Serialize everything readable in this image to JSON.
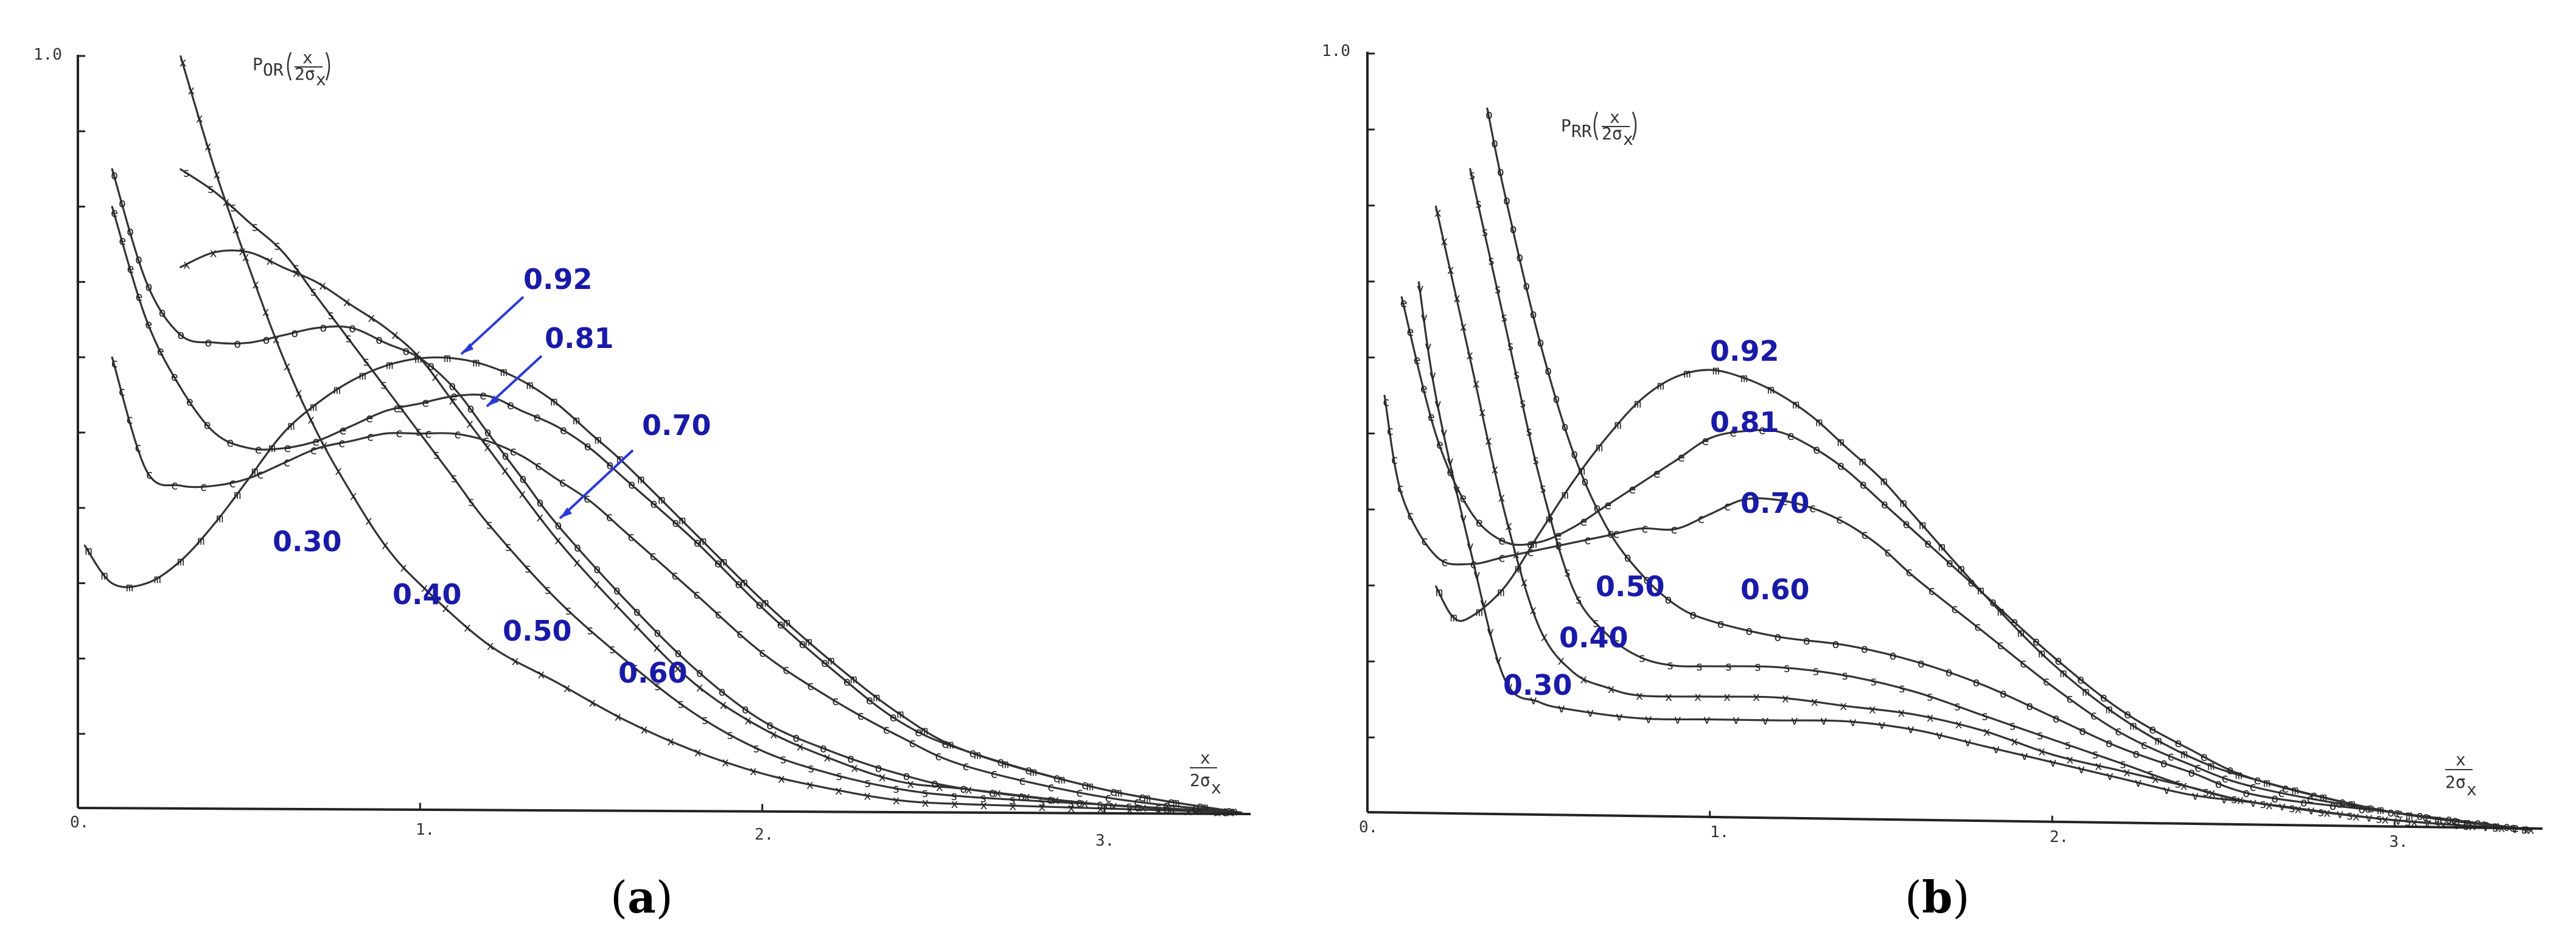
{
  "chart_data": [
    {
      "type": "line",
      "panel_label": "a",
      "ylabel_main": "P",
      "ylabel_sub": "OR",
      "ylabel_frac_num": "x",
      "ylabel_frac_den": "2σ",
      "ylabel_frac_den_sub": "x",
      "xlabel_num": "x",
      "xlabel_den": "2σ",
      "xlabel_den_sub": "x",
      "x_tick_labels": [
        "0.",
        "1.",
        "2.",
        "3."
      ],
      "y_tick_labels": [
        "1.0"
      ],
      "xlim": [
        0,
        3.45
      ],
      "ylim": [
        0,
        1.0
      ],
      "series": [
        {
          "name": "0.30",
          "marker": "x",
          "x": [
            0.3,
            0.4,
            0.5,
            0.6,
            0.7,
            0.8,
            0.9,
            1.0,
            1.2,
            1.4,
            1.6,
            1.8,
            2.0,
            2.2,
            2.4,
            2.6,
            3.0,
            3.4
          ],
          "y": [
            1.0,
            0.85,
            0.72,
            0.6,
            0.5,
            0.42,
            0.35,
            0.3,
            0.22,
            0.17,
            0.12,
            0.08,
            0.05,
            0.03,
            0.015,
            0.01,
            0.005,
            0.0
          ]
        },
        {
          "name": "0.40",
          "marker": "s",
          "x": [
            0.3,
            0.4,
            0.5,
            0.6,
            0.7,
            0.8,
            0.9,
            1.0,
            1.1,
            1.2,
            1.4,
            1.6,
            1.8,
            2.0,
            2.2,
            2.4,
            2.6,
            3.0,
            3.4
          ],
          "y": [
            0.85,
            0.82,
            0.78,
            0.74,
            0.68,
            0.62,
            0.56,
            0.5,
            0.44,
            0.38,
            0.28,
            0.2,
            0.13,
            0.08,
            0.05,
            0.03,
            0.02,
            0.01,
            0.0
          ]
        },
        {
          "name": "0.50",
          "marker": "x",
          "x": [
            0.3,
            0.4,
            0.5,
            0.6,
            0.7,
            0.8,
            0.9,
            1.0,
            1.1,
            1.2,
            1.4,
            1.6,
            1.8,
            2.0,
            2.2,
            2.4,
            2.6,
            3.0,
            3.4
          ],
          "y": [
            0.72,
            0.74,
            0.74,
            0.72,
            0.7,
            0.67,
            0.64,
            0.6,
            0.54,
            0.48,
            0.36,
            0.26,
            0.17,
            0.11,
            0.07,
            0.04,
            0.03,
            0.01,
            0.0
          ]
        },
        {
          "name": "0.60",
          "marker": "o",
          "x": [
            0.1,
            0.2,
            0.3,
            0.4,
            0.5,
            0.6,
            0.7,
            0.8,
            0.9,
            1.0,
            1.1,
            1.2,
            1.3,
            1.4,
            1.6,
            1.8,
            2.0,
            2.2,
            2.4,
            2.6,
            3.0,
            3.4
          ],
          "y": [
            0.85,
            0.7,
            0.63,
            0.62,
            0.62,
            0.63,
            0.64,
            0.64,
            0.62,
            0.6,
            0.56,
            0.5,
            0.44,
            0.38,
            0.28,
            0.19,
            0.12,
            0.08,
            0.05,
            0.03,
            0.01,
            0.0
          ]
        },
        {
          "name": "0.70",
          "marker": "c",
          "x": [
            0.1,
            0.2,
            0.3,
            0.4,
            0.5,
            0.6,
            0.7,
            0.8,
            0.9,
            1.0,
            1.1,
            1.2,
            1.3,
            1.4,
            1.5,
            1.6,
            1.8,
            2.0,
            2.2,
            2.4,
            2.6,
            3.0,
            3.4
          ],
          "y": [
            0.6,
            0.45,
            0.43,
            0.43,
            0.44,
            0.46,
            0.48,
            0.49,
            0.5,
            0.5,
            0.5,
            0.49,
            0.47,
            0.44,
            0.41,
            0.37,
            0.29,
            0.21,
            0.15,
            0.1,
            0.06,
            0.02,
            0.0
          ]
        },
        {
          "name": "0.81",
          "marker": "e",
          "x": [
            0.1,
            0.2,
            0.3,
            0.4,
            0.5,
            0.6,
            0.7,
            0.8,
            0.9,
            1.0,
            1.1,
            1.2,
            1.3,
            1.4,
            1.5,
            1.6,
            1.8,
            2.0,
            2.2,
            2.4,
            2.6,
            3.0,
            3.4
          ],
          "y": [
            0.8,
            0.65,
            0.56,
            0.5,
            0.48,
            0.48,
            0.49,
            0.51,
            0.53,
            0.54,
            0.55,
            0.55,
            0.53,
            0.51,
            0.48,
            0.44,
            0.36,
            0.27,
            0.19,
            0.12,
            0.08,
            0.03,
            0.0
          ]
        },
        {
          "name": "0.92",
          "marker": "m",
          "x": [
            0.02,
            0.1,
            0.2,
            0.3,
            0.4,
            0.5,
            0.6,
            0.7,
            0.8,
            0.9,
            1.0,
            1.1,
            1.2,
            1.3,
            1.4,
            1.5,
            1.6,
            1.8,
            2.0,
            2.2,
            2.4,
            2.6,
            3.0,
            3.4
          ],
          "y": [
            0.35,
            0.3,
            0.3,
            0.33,
            0.38,
            0.44,
            0.5,
            0.54,
            0.57,
            0.59,
            0.6,
            0.6,
            0.59,
            0.57,
            0.54,
            0.5,
            0.46,
            0.37,
            0.28,
            0.2,
            0.13,
            0.08,
            0.03,
            0.0
          ]
        }
      ],
      "annotations": [
        "0.92",
        "0.81",
        "0.70",
        "0.30",
        "0.40",
        "0.50",
        "0.60"
      ]
    },
    {
      "type": "line",
      "panel_label": "b",
      "ylabel_main": "P",
      "ylabel_sub": "RR",
      "ylabel_frac_num": "x",
      "ylabel_frac_den": "2σ",
      "ylabel_frac_den_sub": "x",
      "xlabel_num": "x",
      "xlabel_den": "2σ",
      "xlabel_den_sub": "x",
      "x_tick_labels": [
        "0.",
        "1.",
        "2.",
        "3."
      ],
      "y_tick_labels": [
        "1.0"
      ],
      "xlim": [
        0,
        3.45
      ],
      "ylim": [
        0,
        1.0
      ],
      "series": [
        {
          "name": "0.30",
          "marker": "v",
          "x": [
            0.15,
            0.2,
            0.3,
            0.4,
            0.5,
            0.6,
            0.8,
            1.0,
            1.2,
            1.4,
            1.6,
            1.8,
            2.0,
            2.2,
            2.4,
            2.6,
            3.0,
            3.4
          ],
          "y": [
            0.7,
            0.55,
            0.35,
            0.18,
            0.15,
            0.14,
            0.13,
            0.13,
            0.13,
            0.13,
            0.12,
            0.1,
            0.08,
            0.06,
            0.04,
            0.03,
            0.01,
            0.0
          ]
        },
        {
          "name": "0.40",
          "marker": "x",
          "x": [
            0.2,
            0.3,
            0.4,
            0.5,
            0.6,
            0.7,
            0.8,
            1.0,
            1.2,
            1.4,
            1.6,
            1.8,
            2.0,
            2.2,
            2.4,
            2.6,
            3.0,
            3.4
          ],
          "y": [
            0.8,
            0.6,
            0.4,
            0.25,
            0.19,
            0.17,
            0.16,
            0.16,
            0.16,
            0.15,
            0.14,
            0.12,
            0.09,
            0.07,
            0.05,
            0.03,
            0.01,
            0.0
          ]
        },
        {
          "name": "0.50",
          "marker": "s",
          "x": [
            0.3,
            0.4,
            0.5,
            0.6,
            0.7,
            0.8,
            0.9,
            1.0,
            1.2,
            1.4,
            1.6,
            1.8,
            2.0,
            2.2,
            2.4,
            2.6,
            3.0,
            3.4
          ],
          "y": [
            0.85,
            0.65,
            0.45,
            0.3,
            0.24,
            0.21,
            0.2,
            0.2,
            0.2,
            0.19,
            0.17,
            0.14,
            0.11,
            0.08,
            0.05,
            0.03,
            0.01,
            0.0
          ]
        },
        {
          "name": "0.60",
          "marker": "o",
          "x": [
            0.35,
            0.4,
            0.5,
            0.6,
            0.7,
            0.8,
            0.9,
            1.0,
            1.2,
            1.4,
            1.6,
            1.8,
            2.0,
            2.2,
            2.4,
            2.6,
            3.0,
            3.4
          ],
          "y": [
            0.93,
            0.82,
            0.63,
            0.48,
            0.38,
            0.32,
            0.28,
            0.26,
            0.24,
            0.23,
            0.21,
            0.18,
            0.14,
            0.1,
            0.07,
            0.04,
            0.02,
            0.0
          ]
        },
        {
          "name": "0.70",
          "marker": "c",
          "x": [
            0.05,
            0.1,
            0.2,
            0.3,
            0.4,
            0.5,
            0.6,
            0.7,
            0.8,
            0.9,
            1.0,
            1.1,
            1.2,
            1.3,
            1.4,
            1.5,
            1.6,
            1.8,
            2.0,
            2.2,
            2.4,
            2.6,
            3.0,
            3.4
          ],
          "y": [
            0.55,
            0.42,
            0.34,
            0.33,
            0.34,
            0.35,
            0.36,
            0.37,
            0.38,
            0.38,
            0.4,
            0.42,
            0.42,
            0.41,
            0.39,
            0.36,
            0.32,
            0.25,
            0.18,
            0.12,
            0.08,
            0.05,
            0.02,
            0.0
          ]
        },
        {
          "name": "0.81",
          "marker": "e",
          "x": [
            0.1,
            0.2,
            0.3,
            0.4,
            0.5,
            0.6,
            0.7,
            0.8,
            0.9,
            1.0,
            1.1,
            1.2,
            1.3,
            1.4,
            1.5,
            1.6,
            1.8,
            2.0,
            2.2,
            2.4,
            2.6,
            3.0,
            3.4
          ],
          "y": [
            0.68,
            0.5,
            0.4,
            0.36,
            0.36,
            0.38,
            0.41,
            0.44,
            0.47,
            0.5,
            0.51,
            0.51,
            0.49,
            0.46,
            0.42,
            0.38,
            0.3,
            0.22,
            0.15,
            0.1,
            0.06,
            0.02,
            0.0
          ]
        },
        {
          "name": "0.92",
          "marker": "m",
          "x": [
            0.2,
            0.25,
            0.3,
            0.4,
            0.5,
            0.6,
            0.7,
            0.8,
            0.9,
            1.0,
            1.1,
            1.2,
            1.3,
            1.4,
            1.5,
            1.6,
            1.8,
            2.0,
            2.2,
            2.4,
            2.6,
            3.0,
            3.4
          ],
          "y": [
            0.3,
            0.26,
            0.26,
            0.3,
            0.37,
            0.44,
            0.5,
            0.55,
            0.58,
            0.59,
            0.58,
            0.56,
            0.53,
            0.49,
            0.45,
            0.4,
            0.3,
            0.21,
            0.14,
            0.09,
            0.06,
            0.02,
            0.0
          ]
        }
      ],
      "annotations": [
        "0.92",
        "0.81",
        "0.70",
        "0.50",
        "0.60",
        "0.40",
        "0.30"
      ]
    }
  ]
}
